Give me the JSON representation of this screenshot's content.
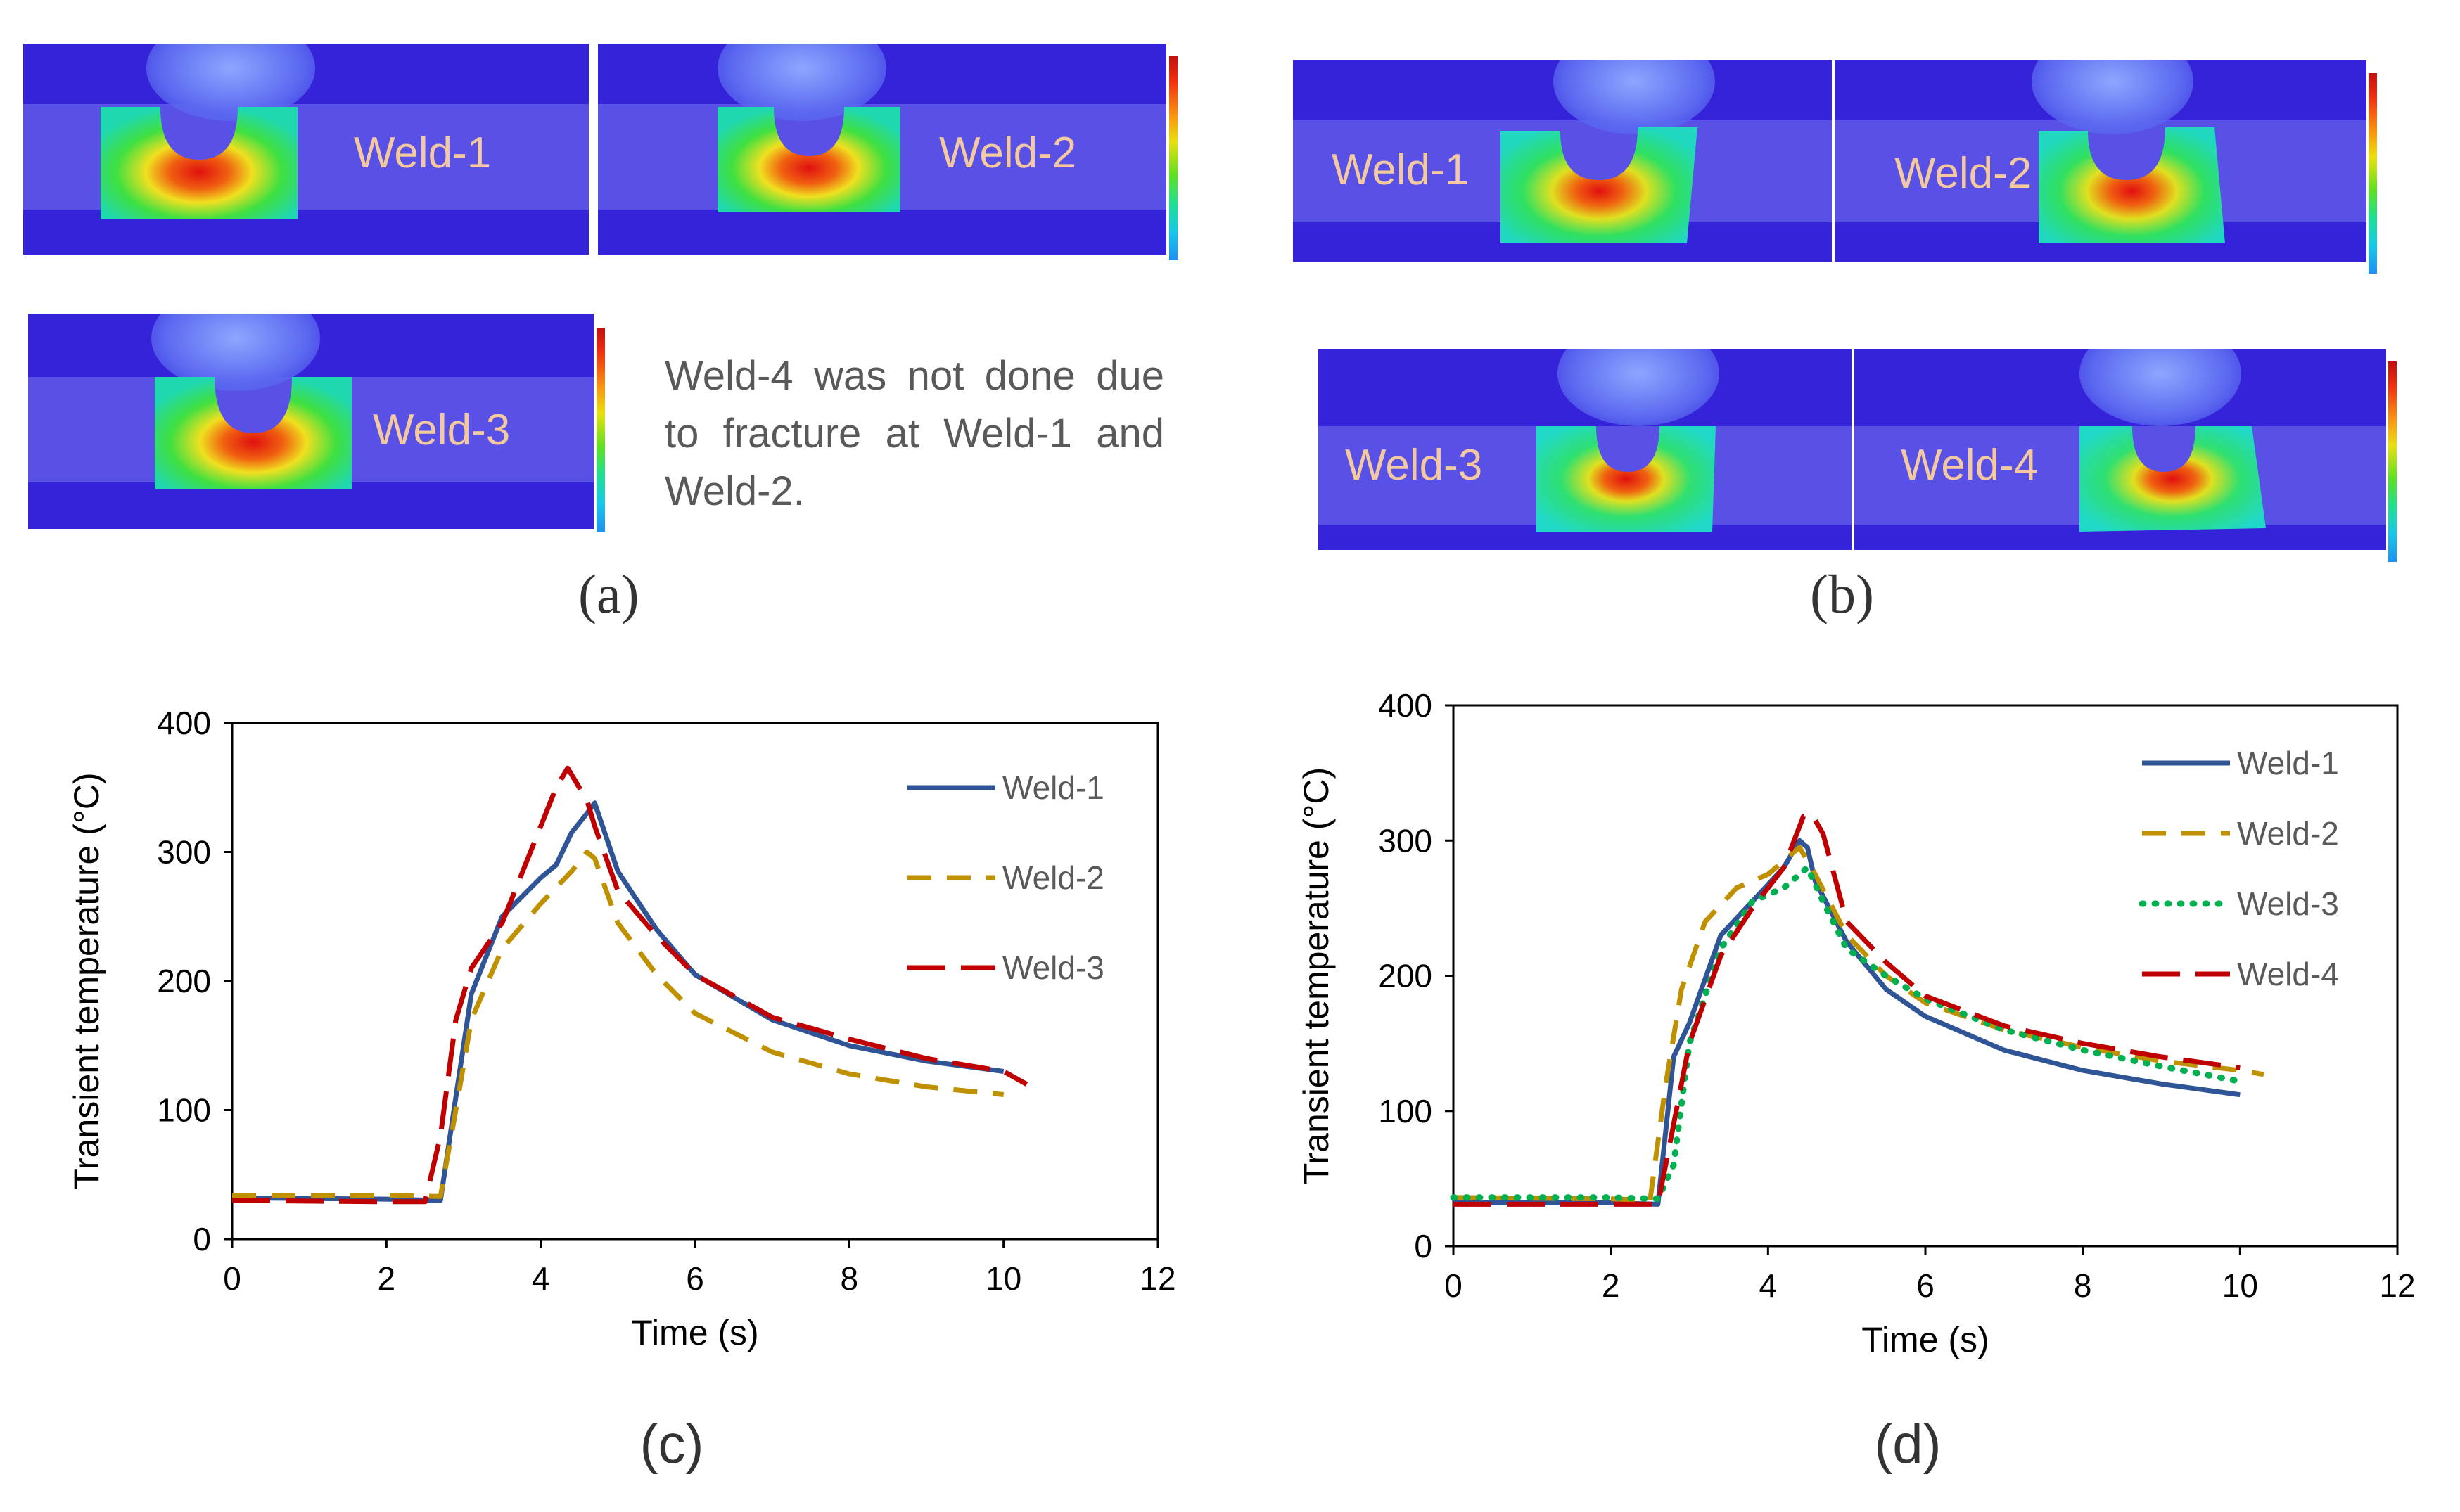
{
  "panel_a": {
    "letter": "(a)",
    "images": [
      "Weld-1",
      "Weld-2",
      "Weld-3"
    ],
    "note": "Weld-4 was not done due to fracture at Weld-1 and Weld-2."
  },
  "panel_b": {
    "letter": "(b)",
    "images": [
      "Weld-1",
      "Weld-2",
      "Weld-3",
      "Weld-4"
    ]
  },
  "colors": {
    "weld1": "#2f5597",
    "weld2": "#bf9000",
    "weld3_c": "#c00000",
    "weld3_d": "#00b050",
    "weld4": "#c00000"
  },
  "chart_data": [
    {
      "id": "c",
      "letter": "(c)",
      "type": "line",
      "xlabel": "Time (s)",
      "ylabel": "Transient temperature (°C)",
      "xlim": [
        0,
        12
      ],
      "ylim": [
        0,
        400
      ],
      "xticks": [
        0,
        2,
        4,
        6,
        8,
        10,
        12
      ],
      "yticks": [
        0,
        100,
        200,
        300,
        400
      ],
      "legend_position": "top-right",
      "series": [
        {
          "name": "Weld-1",
          "style": "solid",
          "color": "#2f5597",
          "x": [
            0,
            2.0,
            2.7,
            2.9,
            3.1,
            3.5,
            4.0,
            4.2,
            4.4,
            4.6,
            4.7,
            5.0,
            5.5,
            6.0,
            7.0,
            8.0,
            9.0,
            10.0
          ],
          "y": [
            32,
            31,
            30,
            110,
            190,
            250,
            280,
            290,
            315,
            330,
            338,
            285,
            240,
            205,
            170,
            150,
            138,
            130
          ]
        },
        {
          "name": "Weld-2",
          "style": "dashed",
          "color": "#bf9000",
          "x": [
            0,
            2.0,
            2.7,
            2.9,
            3.1,
            3.5,
            4.0,
            4.4,
            4.6,
            4.7,
            5.0,
            5.5,
            6.0,
            7.0,
            8.0,
            9.0,
            10.0
          ],
          "y": [
            34,
            34,
            33,
            100,
            170,
            225,
            260,
            285,
            300,
            295,
            245,
            205,
            175,
            145,
            128,
            118,
            112
          ]
        },
        {
          "name": "Weld-3",
          "style": "longdash",
          "color": "#c00000",
          "x": [
            0,
            2.0,
            2.5,
            2.7,
            2.9,
            3.1,
            3.5,
            4.0,
            4.2,
            4.35,
            4.5,
            4.6,
            4.7,
            5.0,
            5.5,
            6.0,
            7.0,
            8.0,
            9.0,
            10.0,
            10.3
          ],
          "y": [
            30,
            29,
            29,
            80,
            170,
            210,
            245,
            320,
            350,
            365,
            350,
            340,
            320,
            270,
            235,
            205,
            172,
            155,
            140,
            130,
            120
          ]
        }
      ]
    },
    {
      "id": "d",
      "letter": "(d)",
      "type": "line",
      "xlabel": "Time (s)",
      "ylabel": "Transient temperature (°C)",
      "xlim": [
        0,
        12
      ],
      "ylim": [
        0,
        400
      ],
      "xticks": [
        0,
        2,
        4,
        6,
        8,
        10,
        12
      ],
      "yticks": [
        0,
        100,
        200,
        300,
        400
      ],
      "legend_position": "top-right",
      "series": [
        {
          "name": "Weld-1",
          "style": "solid",
          "color": "#2f5597",
          "x": [
            0,
            2.0,
            2.6,
            2.8,
            3.0,
            3.4,
            3.8,
            4.2,
            4.4,
            4.5,
            4.6,
            5.0,
            5.5,
            6.0,
            7.0,
            8.0,
            9.0,
            10.0
          ],
          "y": [
            32,
            32,
            31,
            140,
            165,
            230,
            255,
            280,
            300,
            295,
            270,
            225,
            190,
            170,
            145,
            130,
            120,
            112
          ]
        },
        {
          "name": "Weld-2",
          "style": "dashed",
          "color": "#bf9000",
          "x": [
            0,
            2.0,
            2.5,
            2.7,
            2.9,
            3.2,
            3.6,
            4.0,
            4.4,
            4.6,
            5.0,
            5.5,
            6.0,
            7.0,
            8.0,
            9.0,
            10.0,
            10.3
          ],
          "y": [
            36,
            35,
            34,
            120,
            190,
            240,
            265,
            275,
            295,
            275,
            230,
            200,
            180,
            160,
            147,
            137,
            130,
            127
          ]
        },
        {
          "name": "Weld-3",
          "style": "dotted",
          "color": "#00b050",
          "x": [
            0,
            2.0,
            2.6,
            2.8,
            3.0,
            3.4,
            3.8,
            4.2,
            4.5,
            4.7,
            5.0,
            5.5,
            6.0,
            7.0,
            8.0,
            9.0,
            10.0
          ],
          "y": [
            36,
            36,
            35,
            60,
            150,
            220,
            255,
            265,
            280,
            255,
            220,
            200,
            183,
            160,
            145,
            133,
            122
          ]
        },
        {
          "name": "Weld-4",
          "style": "longdash",
          "color": "#c00000",
          "x": [
            0,
            2.0,
            2.6,
            2.8,
            3.0,
            3.4,
            3.8,
            4.2,
            4.45,
            4.55,
            4.7,
            5.0,
            5.5,
            6.0,
            7.0,
            8.0,
            9.0,
            10.0
          ],
          "y": [
            31,
            31,
            31,
            90,
            150,
            215,
            250,
            280,
            318,
            320,
            305,
            240,
            210,
            185,
            163,
            150,
            140,
            132
          ]
        }
      ]
    }
  ]
}
